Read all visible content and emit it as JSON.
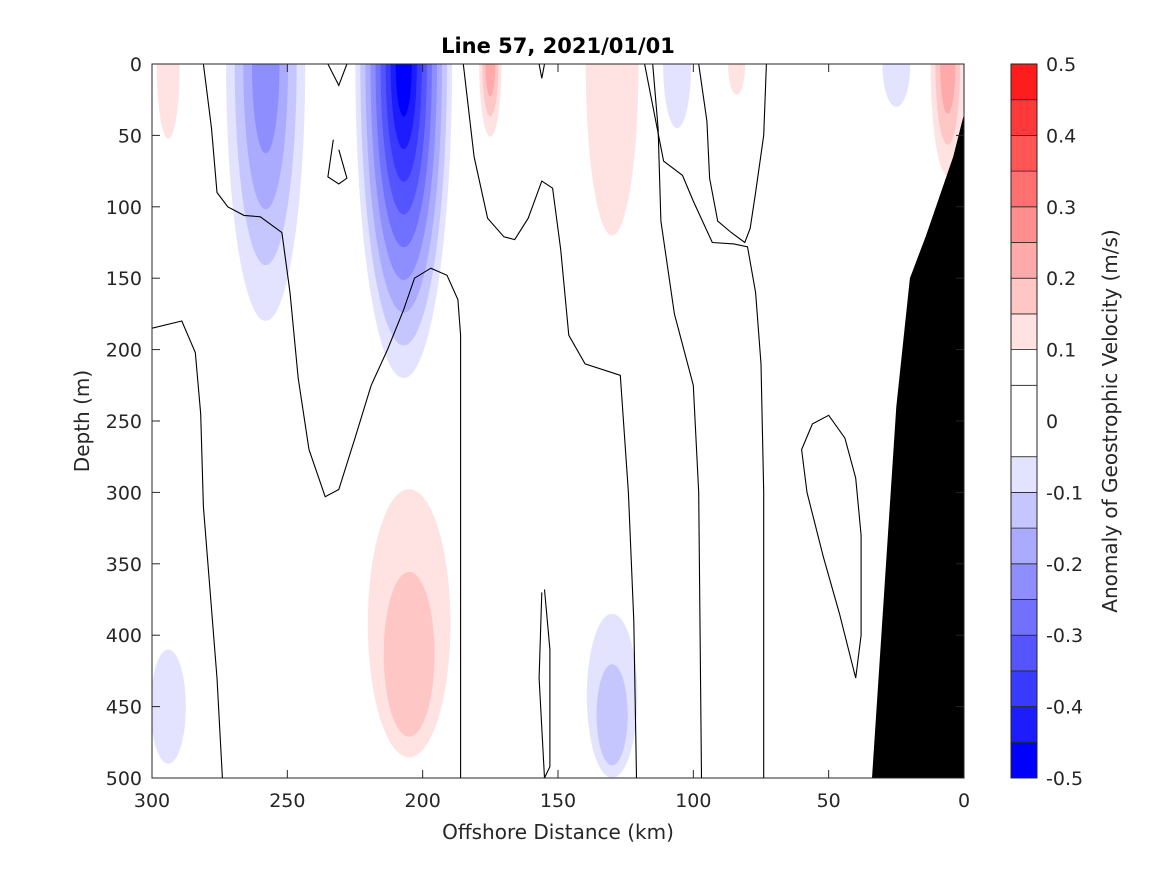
{
  "chart_data": {
    "type": "heatmap",
    "title": "Line 57, 2021/01/01",
    "xlabel": "Offshore Distance (km)",
    "ylabel": "Depth (m)",
    "xlim": [
      300,
      0
    ],
    "ylim": [
      0,
      500
    ],
    "x_reversed": true,
    "y_reversed": true,
    "xticks": [
      "300",
      "250",
      "200",
      "150",
      "100",
      "50",
      "0"
    ],
    "yticks": [
      "0",
      "50",
      "100",
      "150",
      "200",
      "250",
      "300",
      "350",
      "400",
      "450",
      "500"
    ],
    "colorbar": {
      "label": "Anomaly of Geostrophic Velocity (m/s)",
      "ticks": [
        "0.5",
        "0.4",
        "0.3",
        "0.2",
        "0.1",
        "0",
        "-0.1",
        "-0.2",
        "-0.3",
        "-0.4",
        "-0.5"
      ],
      "range": [
        -0.5,
        0.5
      ],
      "levels": [
        -0.5,
        -0.45,
        -0.4,
        -0.35,
        -0.3,
        -0.25,
        -0.2,
        -0.15,
        -0.1,
        -0.05,
        0.05,
        0.1,
        0.15,
        0.2,
        0.25,
        0.3,
        0.35,
        0.4,
        0.45,
        0.5
      ],
      "colors": [
        "#0000ff",
        "#1c1cff",
        "#3939ff",
        "#5555ff",
        "#7171ff",
        "#8e8eff",
        "#aaaaff",
        "#c6c6ff",
        "#e3e3ff",
        "#ffffff",
        "#ffffff",
        "#ffe3e3",
        "#ffc6c6",
        "#ffaaaa",
        "#ff8e8e",
        "#ff7171",
        "#ff5555",
        "#ff3939",
        "#ff1c1c",
        "#ff0000"
      ]
    },
    "anomalies": [
      {
        "x": 294,
        "zmin": 0,
        "zmax": 85,
        "peak": 0.1
      },
      {
        "x": 258,
        "zmin": 0,
        "zmax": 180,
        "peak": -0.2
      },
      {
        "x": 207,
        "zmin": 0,
        "zmax": 220,
        "peak": -0.45
      },
      {
        "x": 175,
        "zmin": 0,
        "zmax": 65,
        "peak": 0.2
      },
      {
        "x": 130,
        "zmin": 0,
        "zmax": 195,
        "peak": 0.1
      },
      {
        "x": 106,
        "zmin": 0,
        "zmax": 45,
        "peak": -0.07
      },
      {
        "x": 84,
        "zmin": 0,
        "zmax": 35,
        "peak": 0.1
      },
      {
        "x": 25,
        "zmin": 0,
        "zmax": 30,
        "peak": -0.07
      },
      {
        "x": 6,
        "zmin": 0,
        "zmax": 100,
        "peak": 0.2
      },
      {
        "x": 205,
        "zmin": 240,
        "zmax": 500,
        "peak": 0.15
      },
      {
        "x": 130,
        "zmin": 385,
        "zmax": 500,
        "peak": -0.08
      },
      {
        "x": 294,
        "zmin": 410,
        "zmax": 490,
        "peak": -0.07
      }
    ],
    "bathymetry": [
      [
        34,
        500
      ],
      [
        25,
        240
      ],
      [
        20,
        150
      ],
      [
        14,
        120
      ],
      [
        4,
        65
      ],
      [
        0,
        35
      ]
    ],
    "bathymetry_color": "#000000"
  }
}
